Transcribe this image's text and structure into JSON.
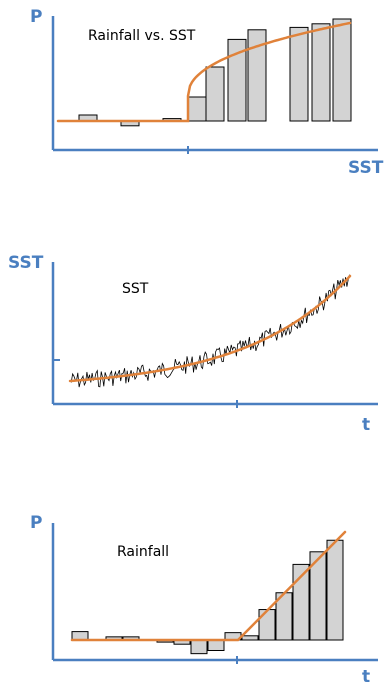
{
  "colors": {
    "axis": "#4a7fc0",
    "fit": "#e0823a",
    "bar_fill": "#d3d3d3",
    "bar_edge": "#000000"
  },
  "chart_data": [
    {
      "type": "bar",
      "title": "Rainfall vs. SST",
      "ylabel": "P",
      "xlabel": "SST",
      "values": [
        0.05,
        0.02,
        -0.04,
        0.02,
        0.2,
        0.45,
        0.68,
        0.76,
        0.78,
        0.81,
        0.85
      ],
      "fit": "piecewise: flat near 0 up to threshold, then rises steeply with square-root shape"
    },
    {
      "type": "line",
      "title": "SST",
      "ylabel": "SST",
      "xlabel": "t",
      "series": [
        {
          "kind": "noisy",
          "shape": "exponential growth with noise"
        },
        {
          "kind": "fit",
          "shape": "smooth exponential curve"
        }
      ]
    },
    {
      "type": "bar",
      "title": "Rainfall",
      "ylabel": "P",
      "xlabel": "t",
      "values": [
        0.08,
        0.0,
        0.03,
        0.03,
        0.0,
        -0.02,
        -0.04,
        -0.13,
        -0.1,
        0.07,
        0.04,
        0.29,
        0.45,
        0.72,
        0.84,
        0.95
      ],
      "fit": "flat near 0, then linear increase after threshold"
    }
  ]
}
